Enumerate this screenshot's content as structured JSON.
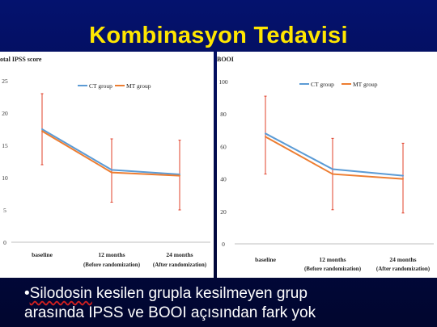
{
  "slide": {
    "title": "Kombinasyon Tedavisi",
    "bullet_marker": "•",
    "bullet_first_word": "Silodosin",
    "bullet_rest_line1": " kesilen grupla kesilmeyen grup",
    "bullet_line2": "arasında IPSS ve BOOI açısından fark yok"
  },
  "colors": {
    "ct_series": "#5b9bd5",
    "mt_series": "#ed7d31",
    "error_bars": "#e0402a",
    "slide_bg": "#04126e",
    "title": "#ffe600"
  },
  "chart_data": [
    {
      "type": "line",
      "ylabel": "otal IPSS score",
      "ylim": [
        0,
        25
      ],
      "yticks": [
        0,
        5,
        10,
        15,
        20,
        25
      ],
      "categories": [
        {
          "line1": "baseline",
          "line2": ""
        },
        {
          "line1": "12 months",
          "line2": "(Before randomization)"
        },
        {
          "line1": "24 months",
          "line2": "(After randomization)"
        }
      ],
      "legend": "top-center",
      "series": [
        {
          "name": "CT group",
          "values": [
            17.5,
            11.2,
            10.5
          ]
        },
        {
          "name": "MT group",
          "values": [
            17.2,
            10.8,
            10.3
          ]
        }
      ],
      "error_bars": [
        [
          12,
          23
        ],
        [
          6.2,
          16
        ],
        [
          5,
          15.8
        ]
      ]
    },
    {
      "type": "line",
      "ylabel": "BOOI",
      "ylim": [
        0,
        100
      ],
      "yticks": [
        0,
        20,
        40,
        60,
        80,
        100
      ],
      "categories": [
        {
          "line1": "baseline",
          "line2": ""
        },
        {
          "line1": "12 months",
          "line2": "(Before randomization)"
        },
        {
          "line1": "24 months",
          "line2": "(After randomization)"
        }
      ],
      "legend": "top-center",
      "series": [
        {
          "name": "CT group",
          "values": [
            68,
            46,
            42
          ]
        },
        {
          "name": "MT group",
          "values": [
            66,
            43,
            40
          ]
        }
      ],
      "error_bars": [
        [
          43,
          91
        ],
        [
          21,
          65
        ],
        [
          19,
          62
        ]
      ]
    }
  ]
}
